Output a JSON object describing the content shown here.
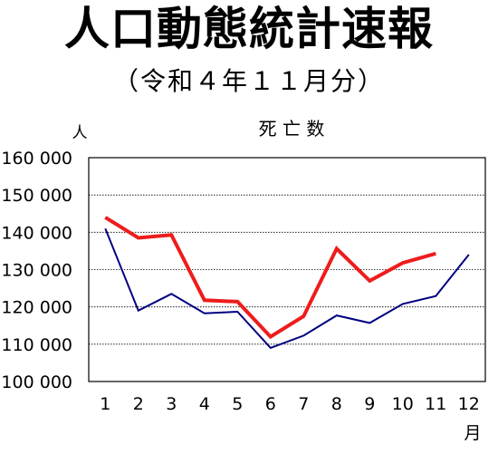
{
  "title": "人口動態統計速報",
  "subtitle": "（令和４年１１月分）",
  "chart_data": {
    "type": "line",
    "title": "死 亡 数",
    "ylabel": "人",
    "xlabel": "月",
    "categories": [
      "1",
      "2",
      "3",
      "4",
      "5",
      "6",
      "7",
      "8",
      "9",
      "10",
      "11",
      "12"
    ],
    "ylim": [
      100000,
      160000
    ],
    "yticks": [
      100000,
      110000,
      120000,
      130000,
      140000,
      150000,
      160000
    ],
    "ytick_labels": [
      "100 000",
      "110 000",
      "120 000",
      "130 000",
      "140 000",
      "150 000",
      "160 000"
    ],
    "grid": true,
    "series": [
      {
        "color": "#000080",
        "values": [
          141000,
          119000,
          123500,
          118300,
          118700,
          109000,
          112300,
          117700,
          115700,
          120800,
          122900,
          134000
        ]
      },
      {
        "color": "#ee1c1c",
        "values": [
          144000,
          138500,
          139300,
          121800,
          121400,
          112000,
          117500,
          135600,
          127000,
          131800,
          134300,
          null
        ]
      }
    ]
  }
}
